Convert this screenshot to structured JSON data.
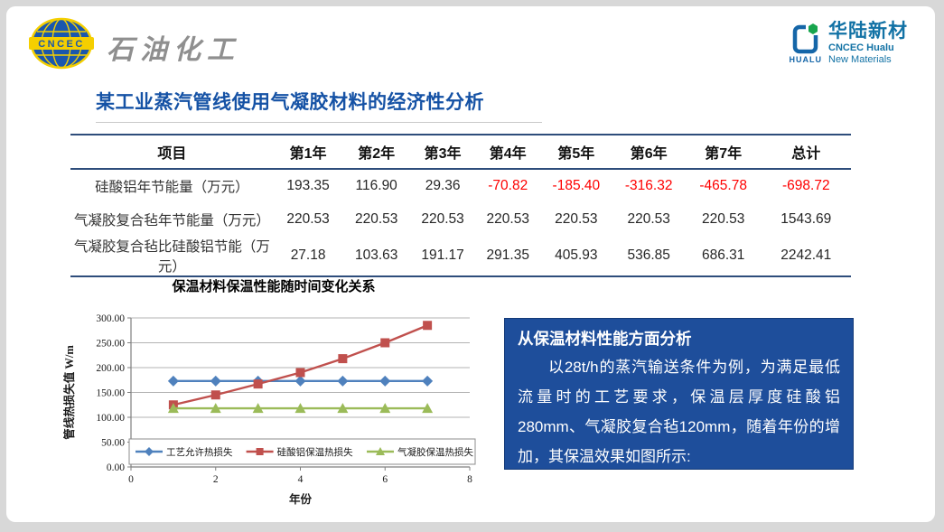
{
  "header": {
    "left_logo": {
      "badge": "CNCEC",
      "brand": "石油化工"
    },
    "right_logo": {
      "mark_text": "HUALU",
      "cn": "华陆新材",
      "en1": "CNCEC Hualu",
      "en2": "New Materials"
    }
  },
  "title": "某工业蒸汽管线使用气凝胶材料的经济性分析",
  "table": {
    "columns": [
      "项目",
      "第1年",
      "第2年",
      "第3年",
      "第4年",
      "第5年",
      "第6年",
      "第7年",
      "总计"
    ],
    "rows": [
      {
        "label": "硅酸铝年节能量（万元）",
        "values": [
          "193.35",
          "116.90",
          "29.36",
          "-70.82",
          "-185.40",
          "-316.32",
          "-465.78",
          "-698.72"
        ]
      },
      {
        "label": "气凝胶复合毡年节能量（万元）",
        "values": [
          "220.53",
          "220.53",
          "220.53",
          "220.53",
          "220.53",
          "220.53",
          "220.53",
          "1543.69"
        ]
      },
      {
        "label": "气凝胶复合毡比硅酸铝节能（万元）",
        "values": [
          "27.18",
          "103.63",
          "191.17",
          "291.35",
          "405.93",
          "536.85",
          "686.31",
          "2242.41"
        ]
      }
    ]
  },
  "chart_data": {
    "type": "line",
    "title": "保温材料保温性能随时间变化关系",
    "xlabel": "年份",
    "ylabel": "管线热损失值 W/m",
    "x": [
      1,
      2,
      3,
      4,
      5,
      6,
      7
    ],
    "series": [
      {
        "name": "工艺允许热损失",
        "color": "#4F81BD",
        "marker": "diamond",
        "values": [
          173,
          173,
          173,
          173,
          173,
          173,
          173
        ]
      },
      {
        "name": "硅酸铝保温热损失",
        "color": "#C0504D",
        "marker": "square",
        "values": [
          125,
          145,
          167,
          190,
          218,
          250,
          285
        ]
      },
      {
        "name": "气凝胶保温热损失",
        "color": "#9BBB59",
        "marker": "triangle",
        "values": [
          118,
          118,
          118,
          118,
          118,
          118,
          118
        ]
      }
    ],
    "ylim": [
      0,
      300
    ],
    "ytick_step": 50,
    "ytick_format": "2dp",
    "xlim": [
      0,
      8
    ],
    "xtick_step": 2,
    "grid": true,
    "legend_position": "bottom-inside"
  },
  "info_box": {
    "heading": "从保温材料性能方面分析",
    "body": "以28t/h的蒸汽输送条件为例，为满足最低流量时的工艺要求，保温层厚度硅酸铝280mm、气凝胶复合毡120mm，随着年份的增加，其保温效果如图所示:"
  },
  "colors": {
    "title_blue": "#1552A5",
    "table_border_navy": "#2E4D7B",
    "negative_red": "#FE0000",
    "info_box_bg": "#1E4E9B",
    "series_blue": "#4F81BD",
    "series_red": "#C0504D",
    "series_green": "#9BBB59",
    "brand_teal": "#1272A5",
    "cncec_globe_blue": "#1A57AD",
    "cncec_yellow": "#F5CF00"
  }
}
